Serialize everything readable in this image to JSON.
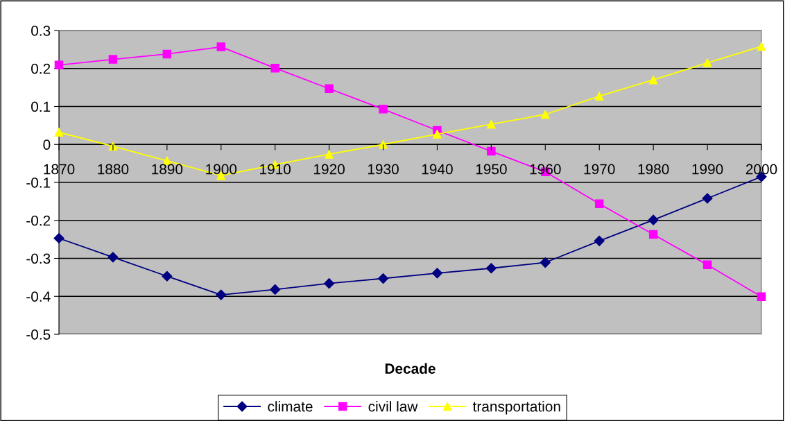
{
  "chart_data": {
    "type": "line",
    "xlabel": "Decade",
    "categories": [
      "1870",
      "1880",
      "1890",
      "1900",
      "1910",
      "1920",
      "1930",
      "1940",
      "1950",
      "1960",
      "1970",
      "1980",
      "1990",
      "2000"
    ],
    "series": [
      {
        "name": "climate",
        "color": "#000080",
        "marker": "diamond",
        "values": [
          -0.247,
          -0.297,
          -0.347,
          -0.396,
          -0.382,
          -0.366,
          -0.353,
          -0.339,
          -0.326,
          -0.311,
          -0.254,
          -0.199,
          -0.142,
          -0.085
        ]
      },
      {
        "name": "civil law",
        "color": "#ff00ff",
        "marker": "square",
        "values": [
          0.209,
          0.224,
          0.238,
          0.257,
          0.201,
          0.147,
          0.093,
          0.037,
          -0.018,
          -0.072,
          -0.156,
          -0.237,
          -0.317,
          -0.401
        ]
      },
      {
        "name": "transportation",
        "color": "#ffff00",
        "marker": "triangle",
        "values": [
          0.032,
          -0.005,
          -0.043,
          -0.082,
          -0.053,
          -0.026,
          0.0,
          0.027,
          0.053,
          0.079,
          0.127,
          0.17,
          0.215,
          0.258
        ]
      }
    ],
    "ylim": [
      -0.5,
      0.3
    ],
    "yticks": [
      {
        "value": -0.5,
        "label": "-0.5"
      },
      {
        "value": -0.4,
        "label": "-0.4"
      },
      {
        "value": -0.3,
        "label": "-0.3"
      },
      {
        "value": -0.2,
        "label": "-0.2"
      },
      {
        "value": -0.1,
        "label": "-0.1"
      },
      0,
      0.1,
      0.2,
      0.3
    ],
    "grid": "y",
    "legend": "bottom"
  }
}
